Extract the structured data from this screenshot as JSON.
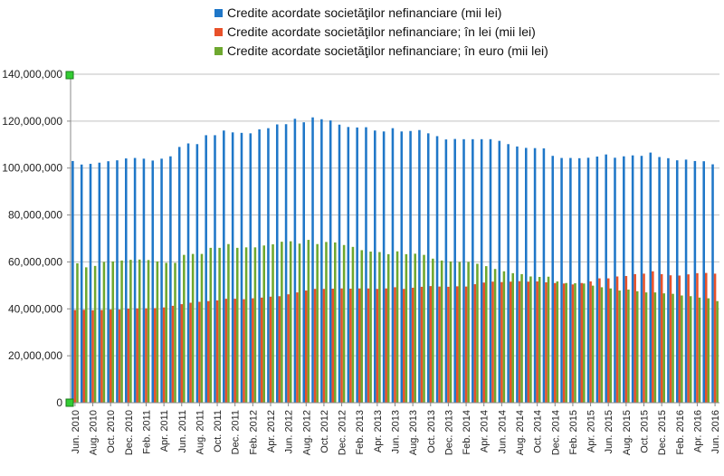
{
  "chart_data": {
    "type": "bar",
    "legend_position": "top",
    "grid": true,
    "ylim": [
      0,
      140000000
    ],
    "yticks": [
      0,
      20000000,
      40000000,
      60000000,
      80000000,
      100000000,
      120000000,
      140000000
    ],
    "ytick_labels": [
      "0",
      "20,000,000",
      "40,000,000",
      "60,000,000",
      "80,000,000",
      "100,000,000",
      "120,000,000",
      "140,000,000"
    ],
    "categories": [
      "Jun. 2010",
      "Jul. 2010",
      "Aug. 2010",
      "Sep. 2010",
      "Oct. 2010",
      "Nov. 2010",
      "Dec. 2010",
      "Jan. 2011",
      "Feb. 2011",
      "Mar. 2011",
      "Apr. 2011",
      "May. 2011",
      "Jun. 2011",
      "Jul. 2011",
      "Aug. 2011",
      "Sep. 2011",
      "Oct. 2011",
      "Nov. 2011",
      "Dec. 2011",
      "Jan. 2012",
      "Feb. 2012",
      "Mar. 2012",
      "Apr. 2012",
      "May. 2012",
      "Jun. 2012",
      "Jul. 2012",
      "Aug. 2012",
      "Sep. 2012",
      "Oct. 2012",
      "Nov. 2012",
      "Dec. 2012",
      "Jan. 2013",
      "Feb. 2013",
      "Mar. 2013",
      "Apr. 2013",
      "May. 2013",
      "Jun. 2013",
      "Jul. 2013",
      "Aug. 2013",
      "Sep. 2013",
      "Oct. 2013",
      "Nov. 2013",
      "Dec. 2013",
      "Jan. 2014",
      "Feb. 2014",
      "Mar. 2014",
      "Apr. 2014",
      "May. 2014",
      "Jun. 2014",
      "Jul. 2014",
      "Aug. 2014",
      "Sep. 2014",
      "Oct. 2014",
      "Nov. 2014",
      "Dec. 2014",
      "Jan. 2015",
      "Feb. 2015",
      "Mar. 2015",
      "Apr. 2015",
      "May. 2015",
      "Jun. 2015",
      "Jul. 2015",
      "Aug. 2015",
      "Sep. 2015",
      "Oct. 2015",
      "Nov. 2015",
      "Dec. 2015",
      "Jan. 2016",
      "Feb. 2016",
      "Mar. 2016",
      "Apr. 2016",
      "May. 2016",
      "Jun. 2016"
    ],
    "xtick_labels": [
      "Jun. 2010",
      "Aug. 2010",
      "Oct. 2010",
      "Dec. 2010",
      "Feb. 2011",
      "Apr. 2011",
      "Jun. 2011",
      "Aug. 2011",
      "Oct. 2011",
      "Dec. 2011",
      "Feb. 2012",
      "Apr. 2012",
      "Jun. 2012",
      "Aug. 2012",
      "Oct. 2012",
      "Dec. 2012",
      "Feb. 2013",
      "Apr. 2013",
      "Jun. 2013",
      "Aug. 2013",
      "Oct. 2013",
      "Dec. 2013",
      "Feb. 2014",
      "Apr. 2014",
      "Jun. 2014",
      "Aug. 2014",
      "Oct. 2014",
      "Dec. 2014",
      "Feb. 2015",
      "Apr. 2015",
      "Jun. 2015",
      "Aug. 2015",
      "Oct. 2015",
      "Dec. 2015",
      "Feb. 2016",
      "Apr. 2016",
      "Jun. 2016"
    ],
    "series": [
      {
        "name": "Credite acordate societăţilor nefinanciare (mii lei)",
        "color": "#1f77c8",
        "values": [
          103000000,
          101500000,
          101800000,
          102300000,
          102900000,
          103300000,
          104100000,
          104300000,
          104000000,
          103200000,
          104000000,
          105000000,
          109000000,
          110500000,
          110200000,
          114000000,
          114000000,
          116000000,
          115200000,
          115000000,
          114800000,
          116500000,
          117000000,
          118600000,
          118700000,
          121000000,
          119500000,
          121600000,
          120800000,
          120300000,
          118500000,
          117500000,
          117300000,
          117400000,
          116000000,
          115600000,
          117000000,
          115600000,
          115800000,
          116200000,
          114800000,
          113600000,
          112200000,
          112400000,
          112300000,
          112300000,
          112300000,
          112300000,
          111600000,
          110200000,
          109200000,
          108600000,
          108500000,
          108400000,
          105200000,
          104300000,
          104300000,
          104200000,
          104400000,
          104900000,
          105800000,
          104400000,
          105000000,
          105400000,
          105200000,
          106600000,
          104700000,
          104200000,
          103300000,
          103600000,
          103000000,
          102900000,
          101600000
        ]
      },
      {
        "name": "Credite acordate societăţilor nefinanciare; în lei (mii lei)",
        "color": "#e8512a",
        "values": [
          39500000,
          39600000,
          39400000,
          39500000,
          39700000,
          39700000,
          40100000,
          40200000,
          40200000,
          40300000,
          40600000,
          41300000,
          42000000,
          42600000,
          43000000,
          43300000,
          43600000,
          44300000,
          44300000,
          44100000,
          44500000,
          44800000,
          45200000,
          45400000,
          46200000,
          47000000,
          47800000,
          48500000,
          48500000,
          48600000,
          48700000,
          48600000,
          48700000,
          48700000,
          48500000,
          48700000,
          49200000,
          48500000,
          49000000,
          49400000,
          49700000,
          49500000,
          49400000,
          49600000,
          49500000,
          50500000,
          51200000,
          51600000,
          51400000,
          51600000,
          51800000,
          51600000,
          51700000,
          51300000,
          51000000,
          50800000,
          50400000,
          51000000,
          51700000,
          53000000,
          53000000,
          53800000,
          54000000,
          54800000,
          55000000,
          56000000,
          54800000,
          54300000,
          54200000,
          54700000,
          55200000,
          55300000,
          55000000
        ]
      },
      {
        "name": "Credite acordate societăţilor nefinanciare; în euro (mii lei)",
        "color": "#6ea82f",
        "values": [
          59400000,
          57700000,
          58300000,
          60000000,
          60200000,
          60600000,
          60900000,
          61000000,
          60800000,
          60200000,
          59600000,
          59600000,
          63000000,
          63400000,
          63400000,
          66000000,
          66000000,
          67600000,
          66000000,
          66200000,
          66200000,
          67000000,
          67500000,
          68600000,
          68800000,
          67800000,
          69400000,
          67600000,
          68500000,
          68300000,
          67200000,
          66400000,
          65000000,
          64400000,
          64200000,
          63300000,
          64500000,
          63300000,
          63500000,
          63000000,
          61400000,
          60600000,
          60200000,
          60000000,
          60000000,
          59200000,
          58200000,
          57000000,
          56000000,
          55200000,
          54800000,
          53800000,
          53600000,
          53700000,
          51700000,
          51000000,
          50900000,
          50800000,
          49900000,
          49200000,
          48700000,
          47800000,
          48200000,
          47500000,
          47000000,
          47000000,
          46600000,
          46400000,
          45700000,
          45400000,
          44800000,
          44500000,
          43300000
        ]
      }
    ]
  }
}
